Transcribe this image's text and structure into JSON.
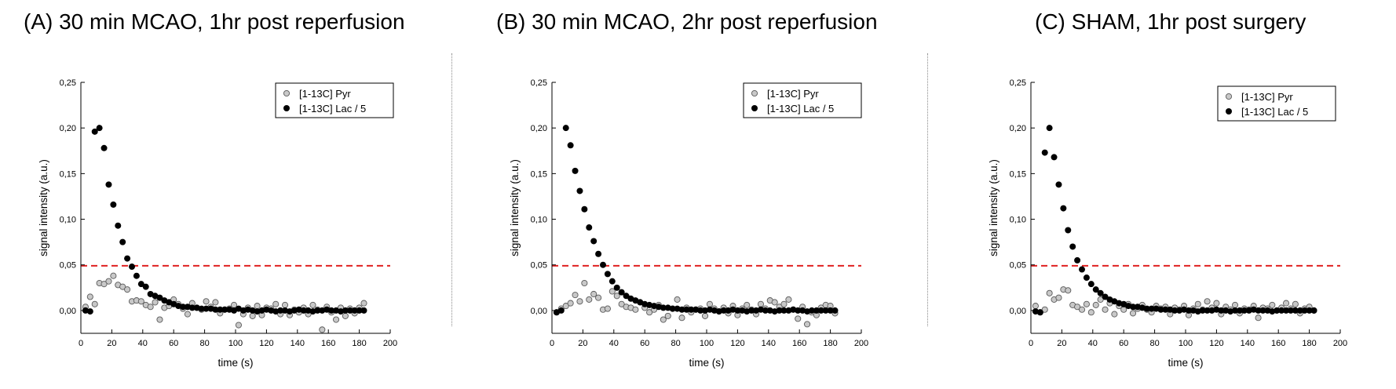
{
  "chart_data": [
    {
      "type": "scatter",
      "title": "(A) 30 min MCAO, 1hr post reperfusion",
      "xlabel": "time (s)",
      "ylabel": "signal intensity (a.u.)",
      "xlim": [
        0,
        200
      ],
      "ylim": [
        -0.025,
        0.25
      ],
      "xticks": [
        "0",
        "20",
        "40",
        "60",
        "80",
        "100",
        "120",
        "140",
        "160",
        "180",
        "200"
      ],
      "yticks": [
        "0,00",
        "0,05",
        "0,10",
        "0,15",
        "0,20",
        "0,25"
      ],
      "legend_position": "top-right",
      "threshold": {
        "y": 0.049,
        "color": "#e02020",
        "style": "dashed"
      },
      "series": [
        {
          "name": "[1-13C] Pyr",
          "marker": "open-circle",
          "color": "#c8c8c8",
          "x": [
            3,
            6,
            9,
            12,
            15,
            18,
            21,
            24,
            27,
            30,
            33,
            36,
            39,
            42,
            45,
            48,
            51,
            54,
            57,
            60,
            63,
            66,
            69,
            72,
            75,
            78,
            81,
            84,
            87,
            90,
            93,
            96,
            99,
            102,
            105,
            108,
            111,
            114,
            117,
            120,
            123,
            126,
            129,
            132,
            135,
            138,
            141,
            144,
            147,
            150,
            153,
            156,
            159,
            162,
            165,
            168,
            171,
            174,
            177,
            180,
            183
          ],
          "values": [
            0.004,
            0.015,
            0.007,
            0.03,
            0.029,
            0.032,
            0.038,
            0.028,
            0.026,
            0.023,
            0.01,
            0.011,
            0.01,
            0.006,
            0.004,
            0.009,
            -0.01,
            0.003,
            0.005,
            0.012,
            0.007,
            0.002,
            -0.004,
            0.008,
            0.003,
            0.001,
            0.01,
            0.004,
            0.009,
            -0.003,
            0.001,
            0.002,
            0.006,
            -0.016,
            -0.004,
            0.003,
            -0.006,
            0.005,
            -0.005,
            0.003,
            0.002,
            0.007,
            -0.004,
            0.006,
            -0.005,
            0.001,
            -0.002,
            0.003,
            -0.004,
            0.006,
            0.001,
            -0.021,
            0.004,
            -0.002,
            -0.01,
            0.003,
            -0.006,
            0.002,
            -0.003,
            0.003,
            0.008
          ]
        },
        {
          "name": "[1-13C] Lac / 5",
          "marker": "filled-circle",
          "color": "#000000",
          "x": [
            3,
            6,
            9,
            12,
            15,
            18,
            21,
            24,
            27,
            30,
            33,
            36,
            39,
            42,
            45,
            48,
            51,
            54,
            57,
            60,
            63,
            66,
            69,
            72,
            75,
            78,
            81,
            84,
            87,
            90,
            93,
            96,
            99,
            102,
            105,
            108,
            111,
            114,
            117,
            120,
            123,
            126,
            129,
            132,
            135,
            138,
            141,
            144,
            147,
            150,
            153,
            156,
            159,
            162,
            165,
            168,
            171,
            174,
            177,
            180,
            183
          ],
          "values": [
            0.0,
            -0.001,
            0.196,
            0.2,
            0.178,
            0.138,
            0.116,
            0.093,
            0.075,
            0.057,
            0.048,
            0.038,
            0.029,
            0.026,
            0.018,
            0.016,
            0.014,
            0.011,
            0.009,
            0.007,
            0.005,
            0.004,
            0.004,
            0.003,
            0.003,
            0.002,
            0.002,
            0.002,
            0.001,
            0.001,
            0.001,
            0.001,
            0.0,
            0.002,
            0.0,
            0.001,
            0.0,
            -0.001,
            0.0,
            0.001,
            0.0,
            -0.001,
            0.0,
            0.0,
            -0.001,
            0.0,
            0.001,
            0.0,
            0.0,
            -0.001,
            0.0,
            0.0,
            0.001,
            0.0,
            0.0,
            -0.001,
            0.0,
            0.0,
            0.0,
            0.0,
            0.0
          ]
        }
      ]
    },
    {
      "type": "scatter",
      "title": "(B) 30 min MCAO, 2hr post reperfusion",
      "xlabel": "time (s)",
      "ylabel": "signal intensity (a.u.)",
      "xlim": [
        0,
        200
      ],
      "ylim": [
        -0.025,
        0.25
      ],
      "xticks": [
        "0",
        "20",
        "40",
        "60",
        "80",
        "100",
        "120",
        "140",
        "160",
        "180",
        "200"
      ],
      "yticks": [
        "0,00",
        "0,05",
        "0,10",
        "0,15",
        "0,20",
        "0,25"
      ],
      "legend_position": "top-right",
      "threshold": {
        "y": 0.049,
        "color": "#e02020",
        "style": "dashed"
      },
      "series": [
        {
          "name": "[1-13C] Pyr",
          "marker": "open-circle",
          "color": "#c8c8c8",
          "x": [
            3,
            6,
            9,
            12,
            15,
            18,
            21,
            24,
            27,
            30,
            33,
            36,
            39,
            42,
            45,
            48,
            51,
            54,
            57,
            60,
            63,
            66,
            69,
            72,
            75,
            78,
            81,
            84,
            87,
            90,
            93,
            96,
            99,
            102,
            105,
            108,
            111,
            114,
            117,
            120,
            123,
            126,
            129,
            132,
            135,
            138,
            141,
            144,
            147,
            150,
            153,
            156,
            159,
            162,
            165,
            168,
            171,
            174,
            177,
            180,
            183
          ],
          "values": [
            -0.002,
            0.002,
            0.005,
            0.008,
            0.017,
            0.01,
            0.03,
            0.012,
            0.018,
            0.014,
            0.001,
            0.002,
            0.021,
            0.016,
            0.007,
            0.004,
            0.003,
            0.001,
            0.009,
            0.003,
            -0.002,
            0.001,
            0.006,
            -0.01,
            -0.006,
            0.002,
            0.012,
            -0.008,
            0.003,
            -0.002,
            0.001,
            0.002,
            -0.006,
            0.007,
            0.002,
            -0.001,
            0.003,
            -0.003,
            0.005,
            -0.005,
            0.002,
            0.006,
            0.001,
            -0.004,
            0.007,
            0.002,
            0.011,
            0.009,
            0.004,
            0.007,
            0.012,
            0.001,
            -0.009,
            0.004,
            -0.015,
            -0.002,
            -0.005,
            0.003,
            0.006,
            0.005,
            -0.003
          ]
        },
        {
          "name": "[1-13C] Lac / 5",
          "marker": "filled-circle",
          "color": "#000000",
          "x": [
            3,
            6,
            9,
            12,
            15,
            18,
            21,
            24,
            27,
            30,
            33,
            36,
            39,
            42,
            45,
            48,
            51,
            54,
            57,
            60,
            63,
            66,
            69,
            72,
            75,
            78,
            81,
            84,
            87,
            90,
            93,
            96,
            99,
            102,
            105,
            108,
            111,
            114,
            117,
            120,
            123,
            126,
            129,
            132,
            135,
            138,
            141,
            144,
            147,
            150,
            153,
            156,
            159,
            162,
            165,
            168,
            171,
            174,
            177,
            180,
            183
          ],
          "values": [
            -0.002,
            0.0,
            0.2,
            0.181,
            0.153,
            0.131,
            0.111,
            0.091,
            0.076,
            0.062,
            0.05,
            0.04,
            0.032,
            0.025,
            0.02,
            0.016,
            0.013,
            0.011,
            0.009,
            0.007,
            0.006,
            0.005,
            0.004,
            0.003,
            0.003,
            0.002,
            0.002,
            0.001,
            0.001,
            0.001,
            0.001,
            0.0,
            0.0,
            0.001,
            0.0,
            -0.001,
            0.0,
            0.0,
            0.001,
            0.0,
            0.0,
            -0.001,
            0.0,
            0.0,
            0.001,
            0.0,
            0.0,
            -0.001,
            0.0,
            0.0,
            0.0,
            0.001,
            0.0,
            0.0,
            -0.001,
            0.0,
            0.0,
            0.0,
            0.0,
            0.0,
            0.0
          ]
        }
      ]
    },
    {
      "type": "scatter",
      "title": "(C) SHAM, 1hr post surgery",
      "xlabel": "time (s)",
      "ylabel": "signal intensity (a.u.)",
      "xlim": [
        0,
        200
      ],
      "ylim": [
        -0.025,
        0.25
      ],
      "xticks": [
        "0",
        "20",
        "40",
        "60",
        "80",
        "100",
        "120",
        "140",
        "160",
        "180",
        "200"
      ],
      "yticks": [
        "0,00",
        "0,05",
        "0,10",
        "0,15",
        "0,20",
        "0,25"
      ],
      "legend_position": "top-right",
      "threshold": {
        "y": 0.049,
        "color": "#e02020",
        "style": "dashed"
      },
      "series": [
        {
          "name": "[1-13C] Pyr",
          "marker": "open-circle",
          "color": "#c8c8c8",
          "x": [
            3,
            6,
            9,
            12,
            15,
            18,
            21,
            24,
            27,
            30,
            33,
            36,
            39,
            42,
            45,
            48,
            51,
            54,
            57,
            60,
            63,
            66,
            69,
            72,
            75,
            78,
            81,
            84,
            87,
            90,
            93,
            96,
            99,
            102,
            105,
            108,
            111,
            114,
            117,
            120,
            123,
            126,
            129,
            132,
            135,
            138,
            141,
            144,
            147,
            150,
            153,
            156,
            159,
            162,
            165,
            168,
            171,
            174,
            177,
            180,
            183
          ],
          "values": [
            0.005,
            -0.002,
            0.001,
            0.019,
            0.012,
            0.014,
            0.023,
            0.022,
            0.006,
            0.004,
            0.001,
            0.007,
            -0.002,
            0.006,
            0.012,
            0.001,
            0.008,
            -0.004,
            0.005,
            0.001,
            0.007,
            -0.003,
            0.002,
            0.006,
            0.001,
            -0.002,
            0.005,
            0.002,
            0.004,
            -0.004,
            0.003,
            0.001,
            0.005,
            -0.005,
            0.002,
            0.007,
            0.001,
            0.01,
            0.003,
            0.008,
            -0.004,
            0.004,
            0.001,
            0.006,
            -0.003,
            0.002,
            0.001,
            0.005,
            -0.008,
            0.003,
            0.002,
            0.006,
            0.0,
            0.003,
            0.008,
            0.002,
            0.007,
            -0.003,
            0.002,
            0.004,
            0.0
          ]
        },
        {
          "name": "[1-13C] Lac / 5",
          "marker": "filled-circle",
          "color": "#000000",
          "x": [
            3,
            6,
            9,
            12,
            15,
            18,
            21,
            24,
            27,
            30,
            33,
            36,
            39,
            42,
            45,
            48,
            51,
            54,
            57,
            60,
            63,
            66,
            69,
            72,
            75,
            78,
            81,
            84,
            87,
            90,
            93,
            96,
            99,
            102,
            105,
            108,
            111,
            114,
            117,
            120,
            123,
            126,
            129,
            132,
            135,
            138,
            141,
            144,
            147,
            150,
            153,
            156,
            159,
            162,
            165,
            168,
            171,
            174,
            177,
            180,
            183
          ],
          "values": [
            -0.001,
            -0.002,
            0.173,
            0.2,
            0.168,
            0.138,
            0.112,
            0.088,
            0.07,
            0.055,
            0.045,
            0.036,
            0.029,
            0.023,
            0.019,
            0.015,
            0.012,
            0.01,
            0.008,
            0.007,
            0.005,
            0.004,
            0.004,
            0.003,
            0.002,
            0.002,
            0.002,
            0.001,
            0.001,
            0.001,
            0.0,
            0.0,
            0.001,
            0.0,
            0.0,
            -0.001,
            0.0,
            0.0,
            0.0,
            0.001,
            0.0,
            0.0,
            -0.001,
            0.0,
            0.0,
            0.0,
            0.0,
            0.001,
            0.0,
            0.0,
            0.0,
            -0.001,
            0.0,
            0.0,
            0.0,
            0.0,
            0.0,
            0.0,
            0.0,
            0.0,
            0.0
          ]
        }
      ]
    }
  ]
}
